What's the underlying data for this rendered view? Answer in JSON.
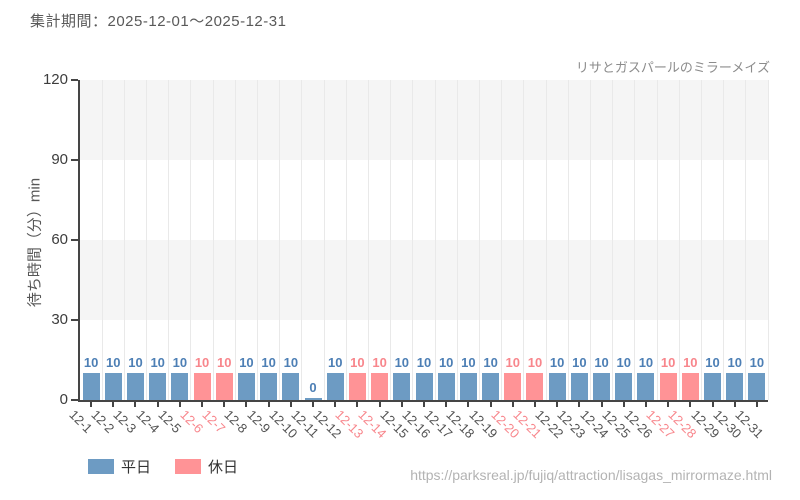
{
  "header": {
    "period_label": "集計期間：2025-12-01～2025-12-31",
    "attraction_label": "リサとガスパールのミラーメイズ"
  },
  "legend": {
    "weekday_label": "平日",
    "holiday_label": "休日"
  },
  "footer": {
    "url": "https://parksreal.jp/fujiq/attraction/lisagas_mirrormaze.html"
  },
  "chart_data": {
    "type": "bar",
    "title": "リサとガスパールのミラーメイズ",
    "xlabel": "",
    "ylabel": "待ち時間（分）min",
    "ylim": [
      0,
      120
    ],
    "yticks": [
      0,
      30,
      60,
      90,
      120
    ],
    "grid": "vertical gridlines at category boundaries, alternating horizontal bands",
    "legend_position": "bottom-left",
    "categories": [
      "12-1",
      "12-2",
      "12-3",
      "12-4",
      "12-5",
      "12-6",
      "12-7",
      "12-8",
      "12-9",
      "12-10",
      "12-11",
      "12-12",
      "12-13",
      "12-14",
      "12-15",
      "12-16",
      "12-17",
      "12-18",
      "12-19",
      "12-20",
      "12-21",
      "12-22",
      "12-23",
      "12-24",
      "12-25",
      "12-26",
      "12-27",
      "12-28",
      "12-29",
      "12-30",
      "12-31"
    ],
    "values": [
      10,
      10,
      10,
      10,
      10,
      10,
      10,
      10,
      10,
      10,
      0,
      10,
      10,
      10,
      10,
      10,
      10,
      10,
      10,
      10,
      10,
      10,
      10,
      10,
      10,
      10,
      10,
      10,
      10,
      10,
      10
    ],
    "day_types": [
      "weekday",
      "weekday",
      "weekday",
      "weekday",
      "weekday",
      "holiday",
      "holiday",
      "weekday",
      "weekday",
      "weekday",
      "weekday",
      "weekday",
      "holiday",
      "holiday",
      "weekday",
      "weekday",
      "weekday",
      "weekday",
      "weekday",
      "holiday",
      "holiday",
      "weekday",
      "weekday",
      "weekday",
      "weekday",
      "weekday",
      "holiday",
      "holiday",
      "weekday",
      "weekday",
      "weekday"
    ],
    "colors": {
      "weekday_bar": "#6d9bc3",
      "holiday_bar": "#ff9396",
      "weekday_value_label": "#4d7fb5",
      "holiday_value_label": "#f8868c",
      "weekday_tick_label": "#525252",
      "holiday_tick_label": "#f8868c",
      "band_fill": "#f5f5f5",
      "gridline": "#e9e9e9",
      "axis": "#454545"
    }
  }
}
